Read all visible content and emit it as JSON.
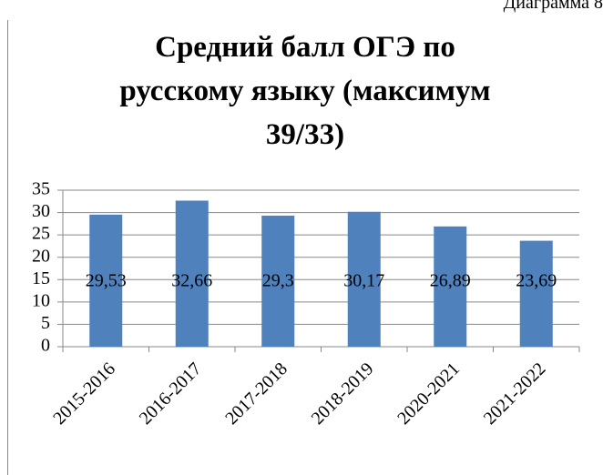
{
  "chart_data": {
    "type": "bar",
    "annotation": "Диаграмма 8",
    "title": "Средний балл ОГЭ по русскому языку (максимум 39/33)",
    "categories": [
      "2015-2016",
      "2016-2017",
      "2017-2018",
      "2018-2019",
      "2020-2021",
      "2021-2022"
    ],
    "values": [
      29.53,
      32.66,
      29.3,
      30.17,
      26.89,
      23.69
    ],
    "value_labels": [
      "29,53",
      "32,66",
      "29,3",
      "30,17",
      "26,89",
      "23,69"
    ],
    "color": "#4f81bd",
    "ylim": [
      0,
      35
    ],
    "yticks": [
      0,
      5,
      10,
      15,
      20,
      25,
      30,
      35
    ],
    "grid": true
  }
}
